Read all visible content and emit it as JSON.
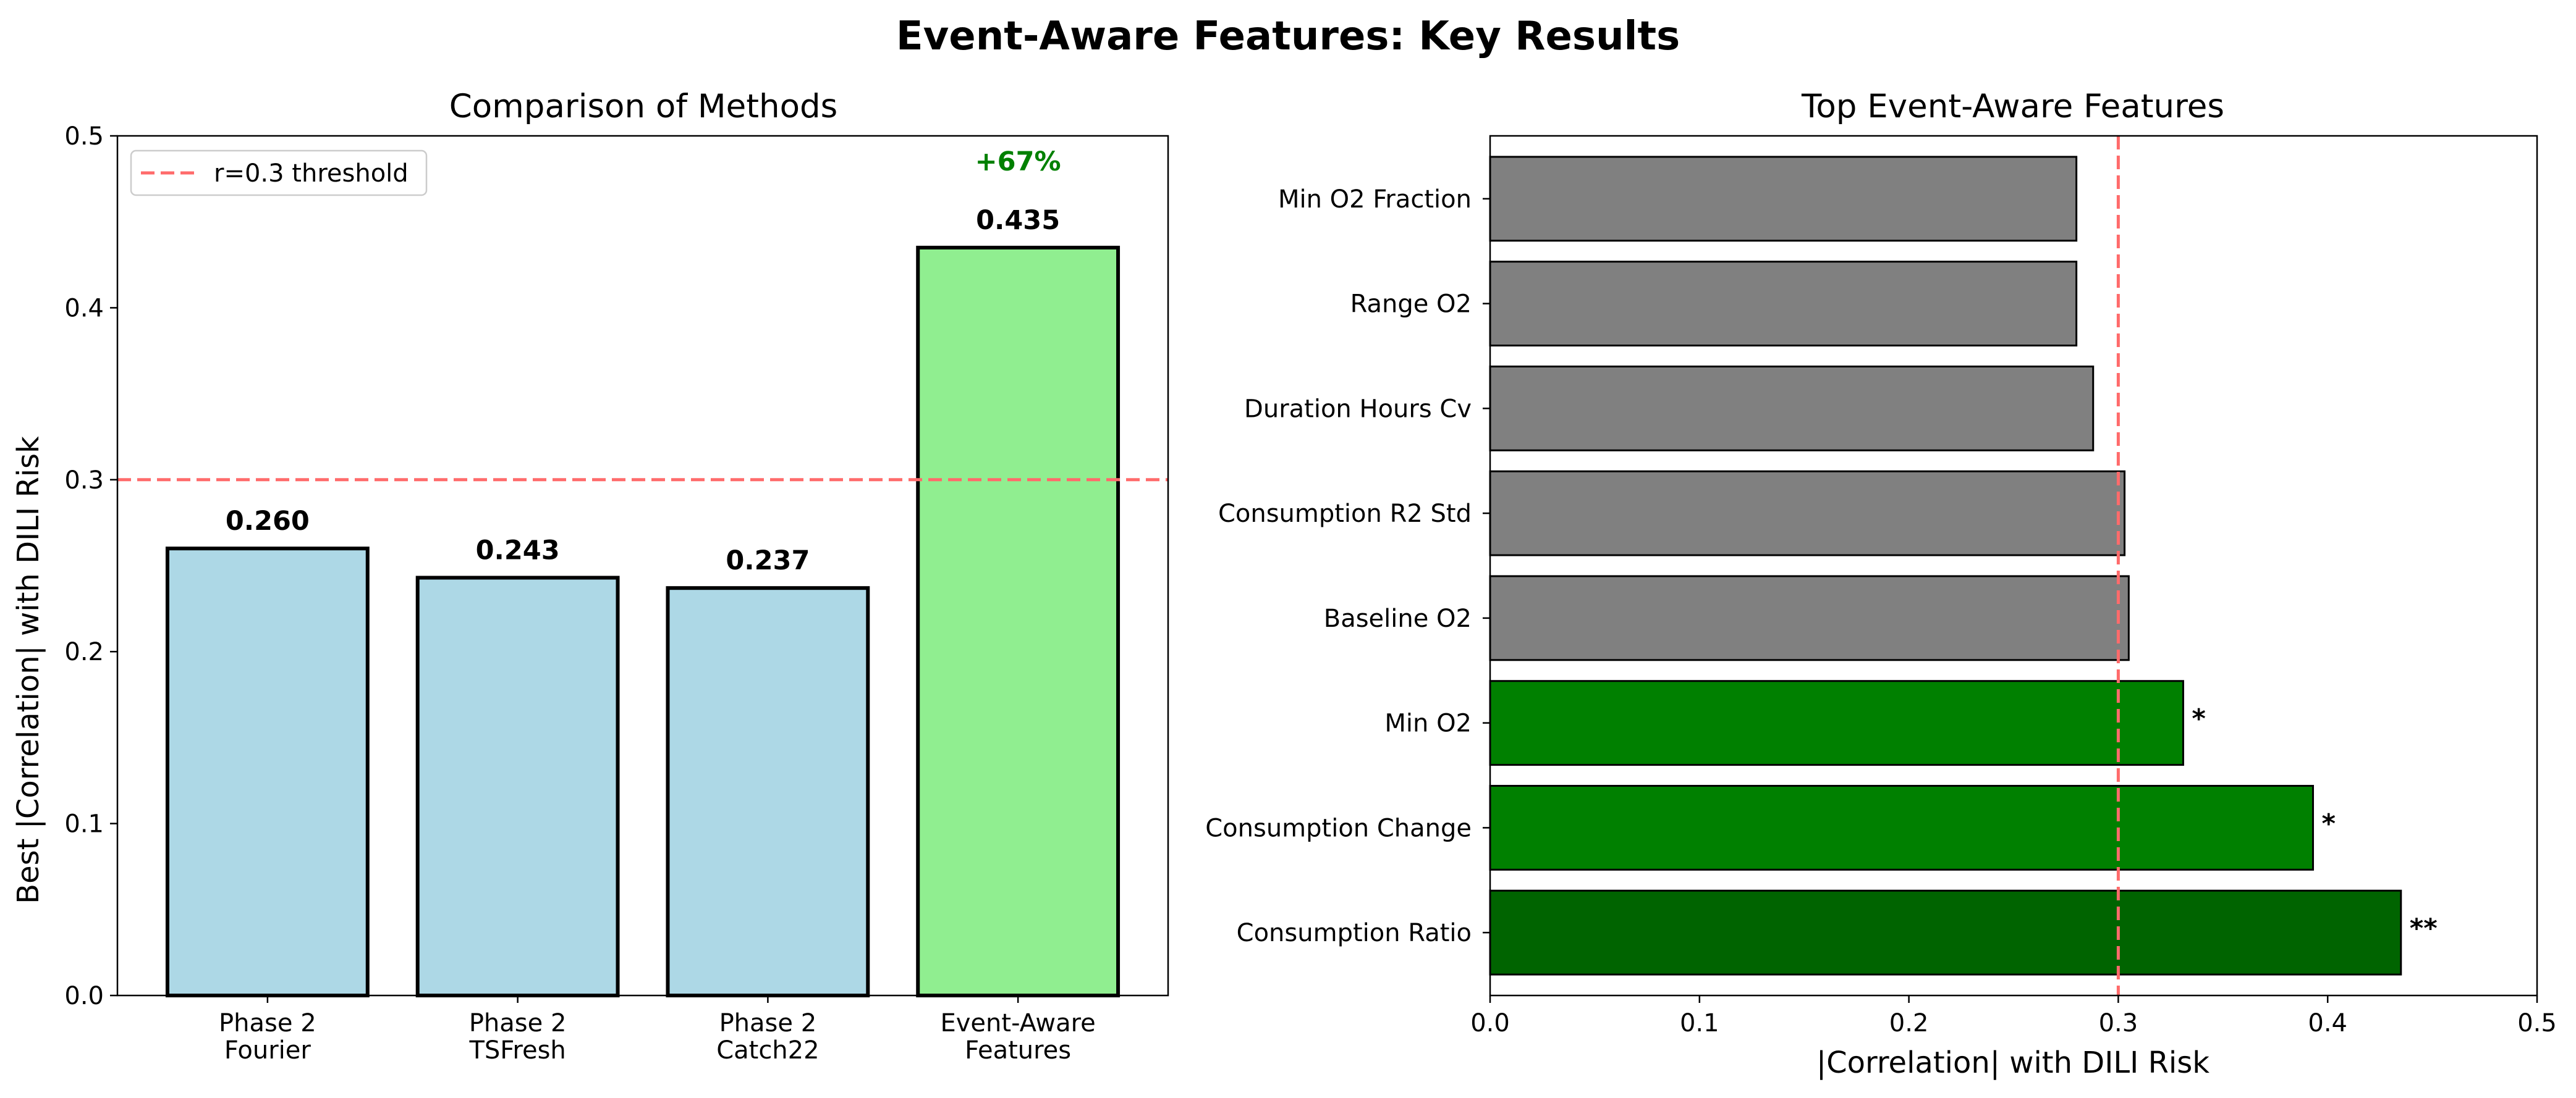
{
  "figure_title": "Event-Aware Features: Key Results",
  "chart_data": [
    {
      "type": "bar",
      "title": "Comparison of Methods",
      "xlabel": "",
      "ylabel": "Best |Correlation| with DILI Risk",
      "categories": [
        [
          "Phase 2",
          "Fourier"
        ],
        [
          "Phase 2",
          "TSFresh"
        ],
        [
          "Phase 2",
          "Catch22"
        ],
        [
          "Event-Aware",
          "Features"
        ]
      ],
      "values": [
        0.26,
        0.243,
        0.237,
        0.435
      ],
      "value_labels": [
        "0.260",
        "0.243",
        "0.237",
        "0.435"
      ],
      "bar_colors": [
        "#add8e6",
        "#add8e6",
        "#add8e6",
        "#90ee90"
      ],
      "ylim": [
        0,
        0.5
      ],
      "yticks": [
        "0.0",
        "0.1",
        "0.2",
        "0.3",
        "0.4",
        "0.5"
      ],
      "threshold": {
        "value": 0.3,
        "label": "r=0.3 threshold",
        "color": "#ff6b6b"
      },
      "annotation": {
        "text": "+67%",
        "color": "#008000",
        "bar_index": 3
      },
      "legend_position": "top-left",
      "grid": false
    },
    {
      "type": "bar",
      "orientation": "horizontal",
      "title": "Top Event-Aware Features",
      "xlabel": "|Correlation| with DILI Risk",
      "ylabel": "",
      "categories": [
        "Consumption Ratio",
        "Consumption Change",
        "Min O2",
        "Baseline O2",
        "Consumption R2 Std",
        "Duration Hours Cv",
        "Range O2",
        "Min O2 Fraction"
      ],
      "values": [
        0.435,
        0.393,
        0.331,
        0.305,
        0.303,
        0.288,
        0.28,
        0.28
      ],
      "significance": [
        "**",
        "*",
        "*",
        "",
        "",
        "",
        "",
        ""
      ],
      "bar_colors": [
        "#006400",
        "#008000",
        "#008000",
        "#808080",
        "#808080",
        "#808080",
        "#808080",
        "#808080"
      ],
      "xlim": [
        0,
        0.5
      ],
      "xticks": [
        "0.0",
        "0.1",
        "0.2",
        "0.3",
        "0.4",
        "0.5"
      ],
      "threshold": {
        "value": 0.3,
        "color": "#ff6b6b"
      },
      "grid": false
    }
  ]
}
